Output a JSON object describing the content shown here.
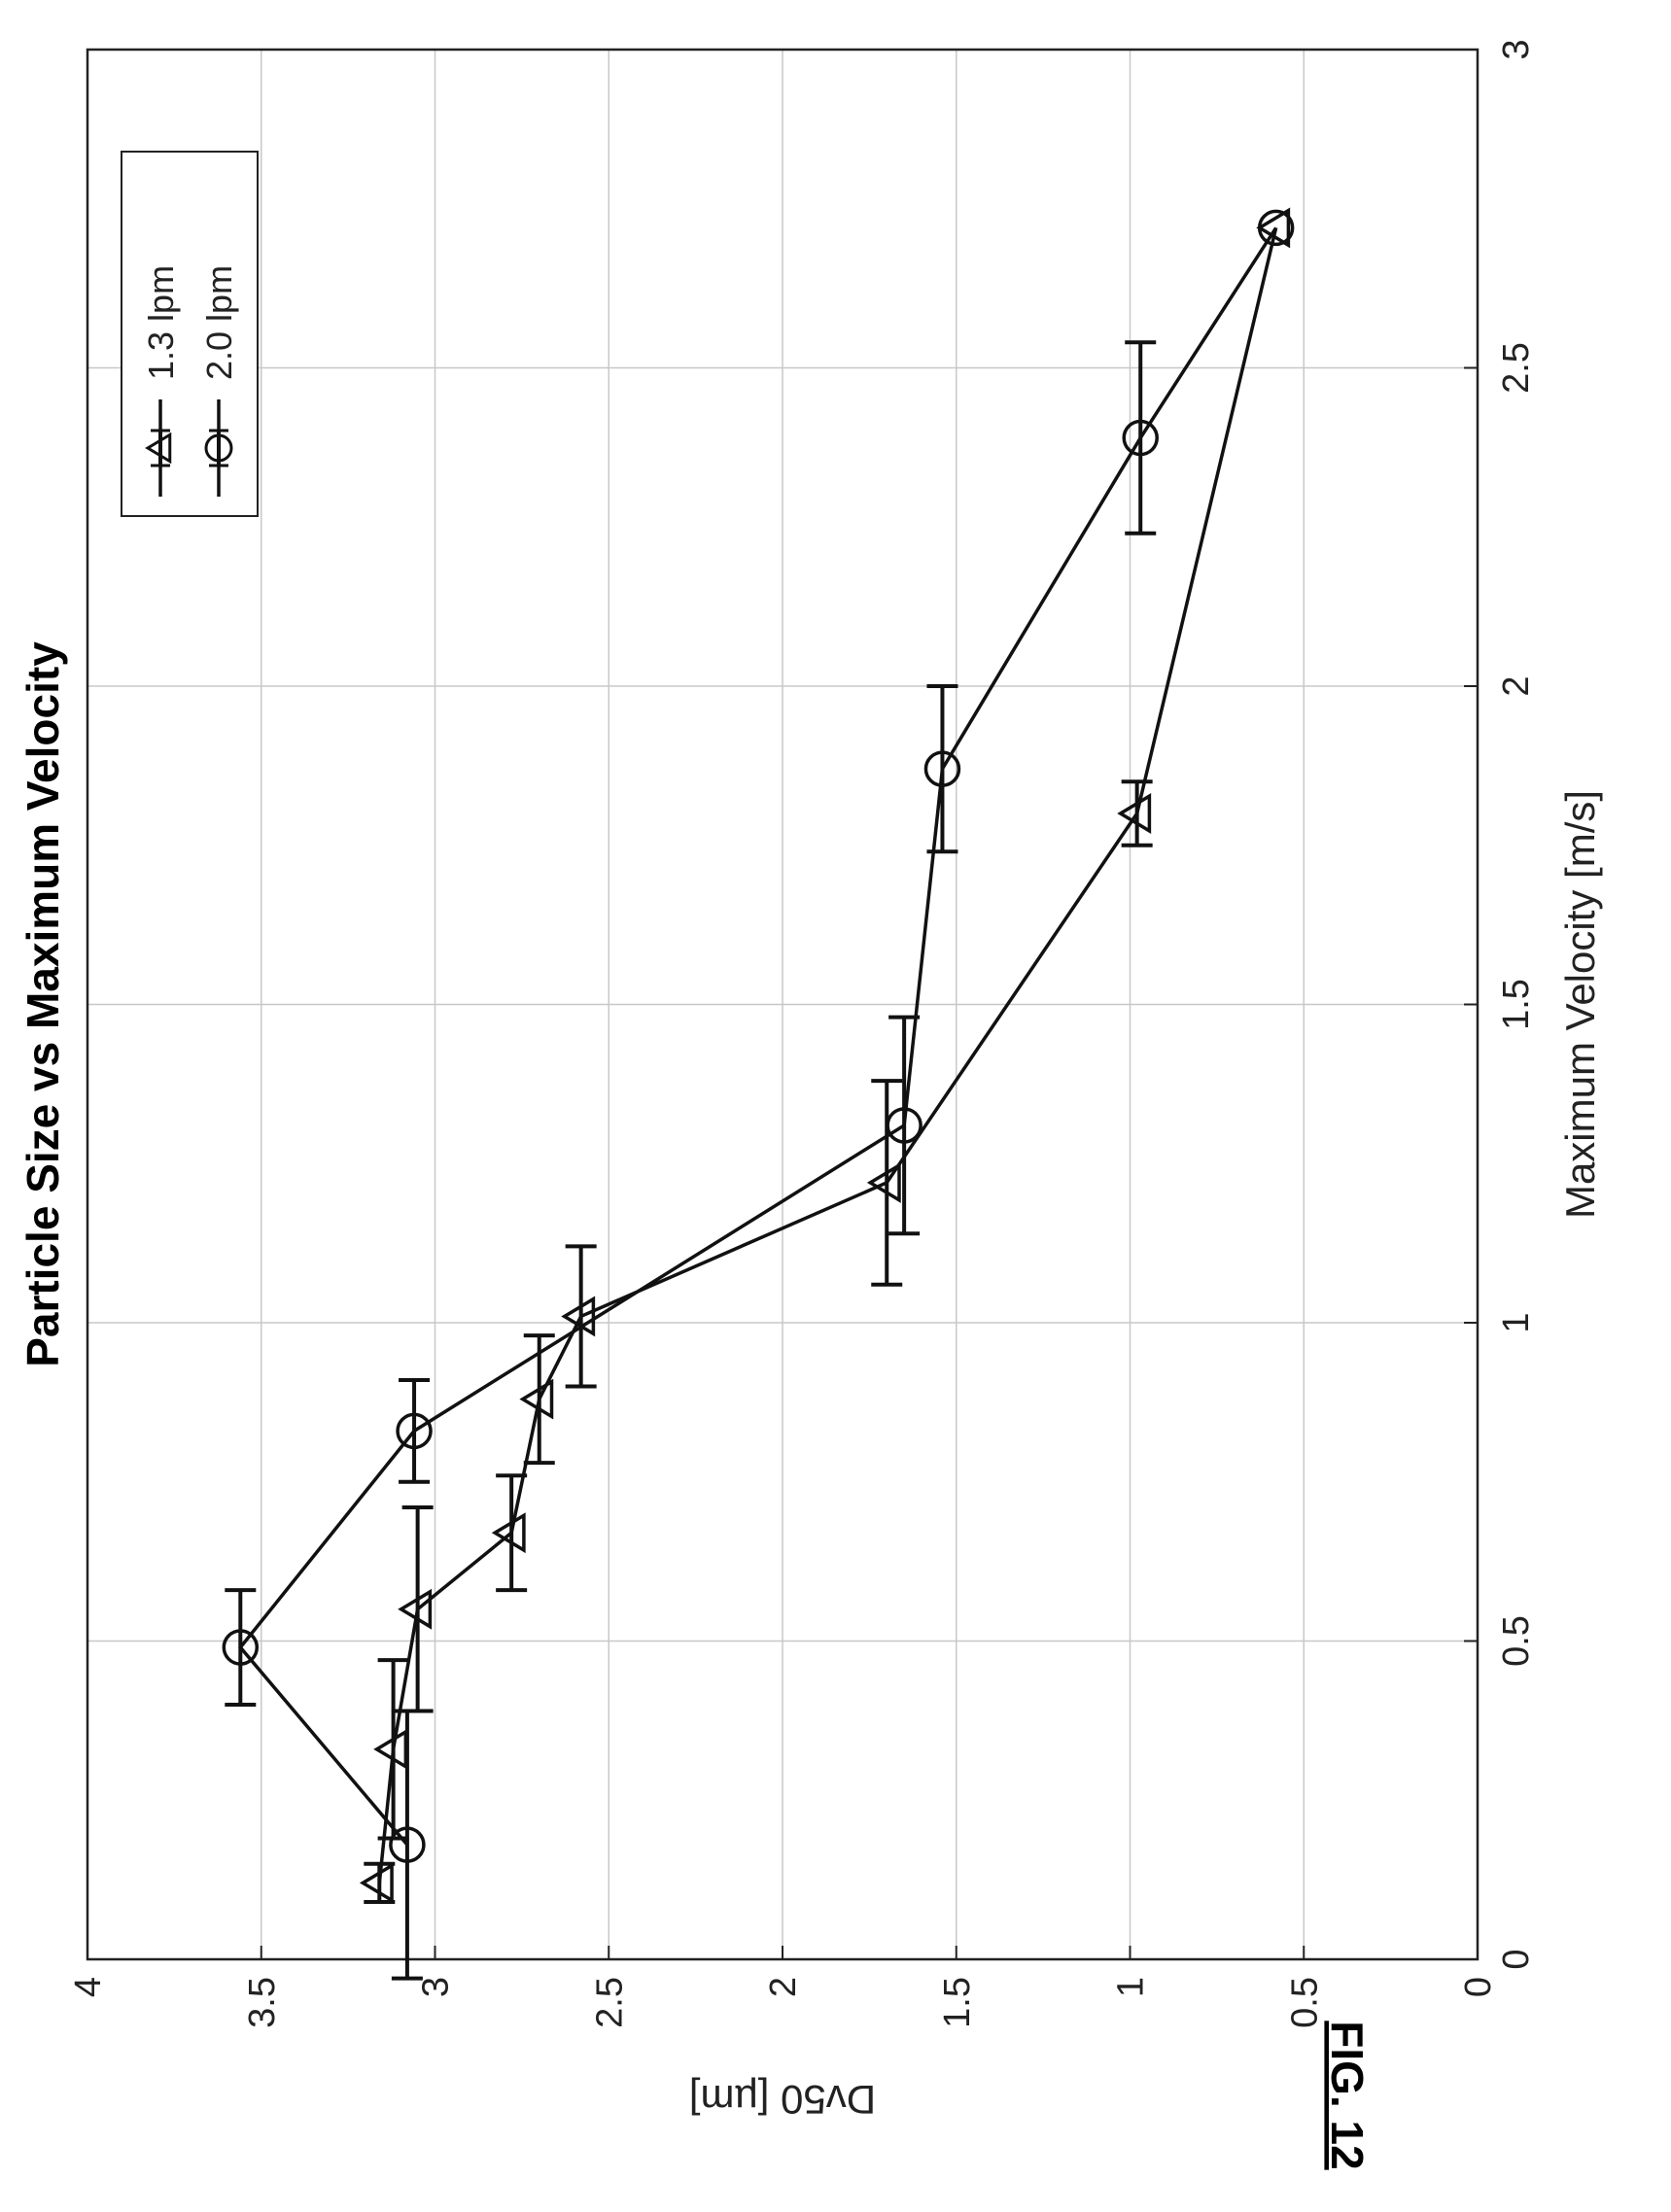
{
  "figure_label": "FIG. 12",
  "chart_data": {
    "type": "line",
    "title": "Particle Size vs Maximum Velocity",
    "xlabel": "Maximum Velocity [m/s]",
    "ylabel": "Dv50 [µm]",
    "xlim": [
      0,
      3
    ],
    "ylim": [
      0,
      4
    ],
    "xticks": [
      0,
      0.5,
      1,
      1.5,
      2,
      2.5,
      3
    ],
    "yticks": [
      0,
      0.5,
      1,
      1.5,
      2,
      2.5,
      3,
      3.5,
      4
    ],
    "xtick_labels": [
      "0",
      "0.5",
      "1",
      "1.5",
      "2",
      "2.5",
      "3"
    ],
    "ytick_labels": [
      "0",
      "0.5",
      "1",
      "1.5",
      "2",
      "2.5",
      "3",
      "3.5",
      "4"
    ],
    "grid": true,
    "legend_position": "top-right",
    "series": [
      {
        "name": "1.3 lpm",
        "marker": "triangle",
        "x": [
          0.12,
          0.33,
          0.55,
          0.67,
          0.88,
          1.01,
          1.22,
          1.8,
          2.72
        ],
        "y": [
          3.16,
          3.12,
          3.05,
          2.78,
          2.7,
          2.58,
          1.7,
          0.98,
          0.58
        ],
        "xerr": [
          0.03,
          0.14,
          0.16,
          0.09,
          0.1,
          0.11,
          0.16,
          0.05,
          0.0
        ]
      },
      {
        "name": "2.0 lpm",
        "marker": "circle",
        "x": [
          0.18,
          0.49,
          0.83,
          1.31,
          1.87,
          2.39,
          2.72
        ],
        "y": [
          3.08,
          3.56,
          3.06,
          1.65,
          1.54,
          0.97,
          0.58
        ],
        "xerr": [
          0.21,
          0.09,
          0.08,
          0.17,
          0.13,
          0.15,
          0.0
        ]
      }
    ]
  }
}
